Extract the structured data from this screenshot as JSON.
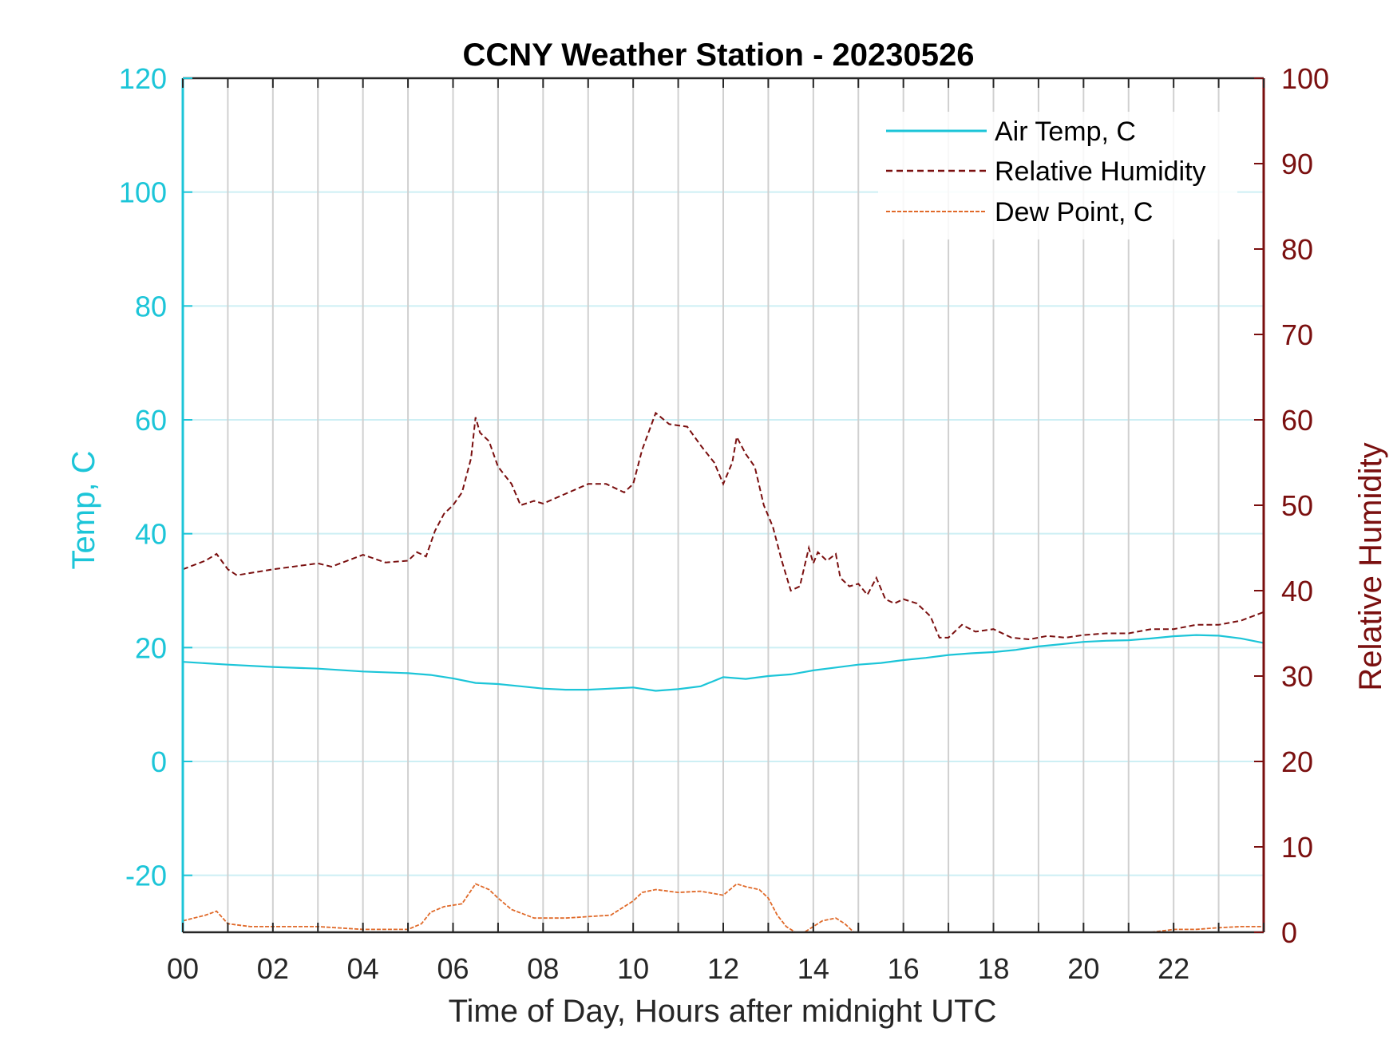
{
  "chart_data": {
    "type": "line",
    "title": "CCNY Weather Station - 20230526",
    "xlabel": "Time of Day, Hours after midnight UTC",
    "ylabel_left": "Temp, C",
    "ylabel_right": "Relative Humidity",
    "xlim": [
      0,
      24
    ],
    "ylim_left": [
      -30,
      120
    ],
    "ylim_right": [
      0,
      100
    ],
    "x_ticks": [
      0,
      2,
      4,
      6,
      8,
      10,
      12,
      14,
      16,
      18,
      20,
      22
    ],
    "x_tick_labels": [
      "00",
      "02",
      "04",
      "06",
      "08",
      "10",
      "12",
      "14",
      "16",
      "18",
      "20",
      "22"
    ],
    "left_ticks": [
      -20,
      0,
      20,
      40,
      60,
      80,
      100,
      120
    ],
    "right_ticks": [
      0,
      10,
      20,
      30,
      40,
      50,
      60,
      70,
      80,
      90,
      100
    ],
    "grid": true,
    "legend_position": "top-right",
    "colors": {
      "temp": "#1cc5d8",
      "humidity": "#7a0f0f",
      "dew": "#e06a2a",
      "vgrid": "#d0d0d0",
      "hgrid": "#cdeff4"
    },
    "series": [
      {
        "name": "Air Temp, C",
        "axis": "left",
        "style": "solid",
        "x": [
          0,
          1,
          2,
          3,
          4,
          5,
          5.5,
          6,
          6.5,
          7,
          7.5,
          8,
          8.5,
          9,
          9.5,
          10,
          10.5,
          11,
          11.5,
          12,
          12.5,
          13,
          13.5,
          14,
          14.5,
          15,
          15.5,
          16,
          16.5,
          17,
          17.5,
          18,
          18.5,
          19,
          19.5,
          20,
          20.5,
          21,
          21.5,
          22,
          22.5,
          23,
          23.5,
          24
        ],
        "y": [
          17.5,
          17,
          16.6,
          16.3,
          15.8,
          15.5,
          15.2,
          14.6,
          13.8,
          13.6,
          13.2,
          12.8,
          12.6,
          12.6,
          12.8,
          13,
          12.4,
          12.7,
          13.2,
          14.8,
          14.5,
          15,
          15.3,
          16,
          16.5,
          17,
          17.3,
          17.8,
          18.2,
          18.7,
          19,
          19.2,
          19.6,
          20.2,
          20.6,
          21,
          21.2,
          21.3,
          21.6,
          22,
          22.2,
          22.1,
          21.6,
          20.8
        ]
      },
      {
        "name": "Relative Humidity",
        "axis": "right",
        "style": "dashed",
        "x": [
          0,
          0.5,
          0.75,
          1,
          1.2,
          2,
          3,
          3.3,
          4,
          4.5,
          5,
          5.2,
          5.4,
          5.6,
          5.8,
          6,
          6.2,
          6.4,
          6.5,
          6.6,
          6.8,
          7,
          7.3,
          7.5,
          7.8,
          8,
          9,
          9.4,
          9.8,
          10,
          10.2,
          10.5,
          10.8,
          11.2,
          11.5,
          11.8,
          12,
          12.2,
          12.3,
          12.5,
          12.7,
          12.9,
          13.1,
          13.3,
          13.5,
          13.7,
          13.9,
          14,
          14.1,
          14.3,
          14.5,
          14.6,
          14.8,
          15,
          15.2,
          15.4,
          15.6,
          15.8,
          16,
          16.3,
          16.6,
          16.8,
          17,
          17.3,
          17.6,
          18,
          18.4,
          18.8,
          19.2,
          19.6,
          20,
          20.5,
          21,
          21.5,
          22,
          22.5,
          23,
          23.5,
          24
        ],
        "y": [
          42.5,
          43.5,
          44.3,
          42.5,
          41.8,
          42.5,
          43.2,
          42.8,
          44.2,
          43.3,
          43.5,
          44.5,
          44,
          47,
          49,
          50,
          51.5,
          55.5,
          60.3,
          58.5,
          57.5,
          54.5,
          52.5,
          50,
          50.5,
          50.2,
          52.5,
          52.5,
          51.5,
          52.5,
          56.5,
          60.8,
          59.5,
          59.2,
          57,
          55,
          52.5,
          55,
          58,
          56,
          54.5,
          50,
          47.5,
          43.5,
          40,
          40.5,
          45,
          43.2,
          44.5,
          43.5,
          44.3,
          41.5,
          40.5,
          40.8,
          39.5,
          41.5,
          39,
          38.5,
          39,
          38.5,
          37,
          34.5,
          34.5,
          36,
          35.2,
          35.5,
          34.5,
          34.3,
          34.7,
          34.5,
          34.8,
          35,
          35,
          35.5,
          35.5,
          36,
          36,
          36.5,
          37.5
        ]
      },
      {
        "name": "Dew Point, C",
        "axis": "left",
        "segments": [
          {
            "x": [
              0,
              0.5,
              0.75,
              1,
              1.5,
              2,
              3,
              4,
              5,
              5.3,
              5.5,
              5.8,
              6.2,
              6.5,
              6.8,
              7,
              7.3,
              7.8,
              8.5,
              9.5,
              10,
              10.2,
              10.5,
              11,
              11.5,
              12,
              12.3,
              12.5,
              12.8,
              13,
              13.2,
              13.4,
              13.6,
              13.8,
              14,
              14.2,
              14.5,
              14.7,
              14.9
            ],
            "y": [
              -28,
              -27,
              -26.3,
              -28.5,
              -29,
              -29,
              -29,
              -29.5,
              -29.5,
              -28.5,
              -26.5,
              -25.5,
              -25,
              -21.5,
              -22.5,
              -24,
              -26,
              -27.5,
              -27.5,
              -27,
              -24.5,
              -23,
              -22.5,
              -23,
              -22.8,
              -23.5,
              -21.5,
              -22,
              -22.5,
              -24,
              -27,
              -29,
              -30,
              -30,
              -29,
              -28,
              -27.5,
              -28.5,
              -30
            ]
          },
          {
            "x": [
              21.5,
              22,
              22.5,
              23,
              23.5,
              24
            ],
            "y": [
              -30,
              -29.5,
              -29.5,
              -29.2,
              -29,
              -29
            ]
          }
        ]
      }
    ]
  }
}
